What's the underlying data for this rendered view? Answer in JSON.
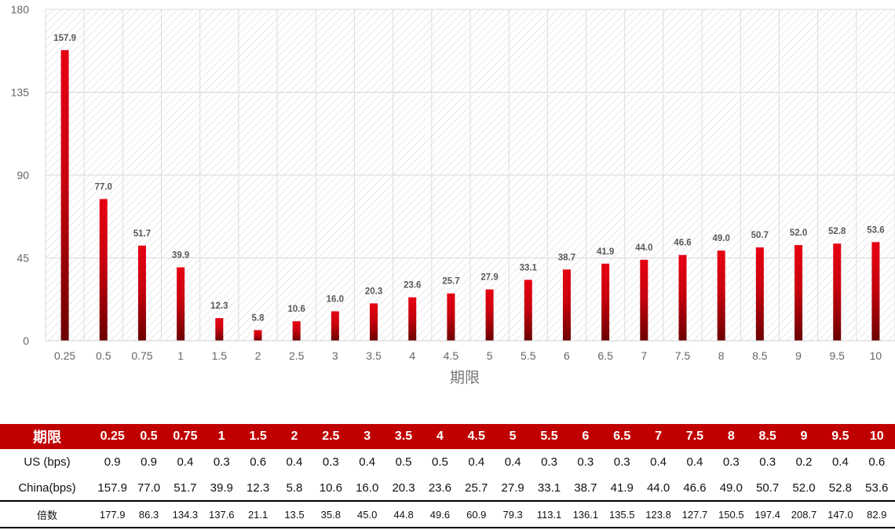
{
  "chart_data": {
    "type": "bar",
    "title": "",
    "xlabel": "期限",
    "ylabel": "",
    "ylim": [
      0,
      180
    ],
    "yticks": [
      0,
      45,
      90,
      135,
      180
    ],
    "categories": [
      "0.25",
      "0.5",
      "0.75",
      "1",
      "1.5",
      "2",
      "2.5",
      "3",
      "3.5",
      "4",
      "4.5",
      "5",
      "5.5",
      "6",
      "6.5",
      "7",
      "7.5",
      "8",
      "8.5",
      "9",
      "9.5",
      "10"
    ],
    "values": [
      157.9,
      77.0,
      51.7,
      39.9,
      12.3,
      5.8,
      10.6,
      16.0,
      20.3,
      23.6,
      25.7,
      27.9,
      33.1,
      38.7,
      41.9,
      44.0,
      46.6,
      49.0,
      50.7,
      52.0,
      52.8,
      53.6
    ],
    "data_labels": [
      "157.9",
      "77.0",
      "51.7",
      "39.9",
      "12.3",
      "5.8",
      "10.6",
      "16.0",
      "20.3",
      "23.6",
      "25.7",
      "27.9",
      "33.1",
      "38.7",
      "41.9",
      "44.0",
      "46.6",
      "49.0",
      "50.7",
      "52.0",
      "52.8",
      "53.6"
    ],
    "grid": true,
    "bar_color_top": "#e60012",
    "bar_color_bottom": "#6b0000",
    "table": {
      "header_label": "期限",
      "header_color": "#c00000",
      "columns": [
        "0.25",
        "0.5",
        "0.75",
        "1",
        "1.5",
        "2",
        "2.5",
        "3",
        "3.5",
        "4",
        "4.5",
        "5",
        "5.5",
        "6",
        "6.5",
        "7",
        "7.5",
        "8",
        "8.5",
        "9",
        "9.5",
        "10"
      ],
      "rows": [
        {
          "label": "US (bps)",
          "values": [
            "0.9",
            "0.9",
            "0.4",
            "0.3",
            "0.6",
            "0.4",
            "0.3",
            "0.4",
            "0.5",
            "0.5",
            "0.4",
            "0.4",
            "0.3",
            "0.3",
            "0.3",
            "0.4",
            "0.4",
            "0.3",
            "0.3",
            "0.2",
            "0.4",
            "0.6"
          ]
        },
        {
          "label": "China(bps)",
          "values": [
            "157.9",
            "77.0",
            "51.7",
            "39.9",
            "12.3",
            "5.8",
            "10.6",
            "16.0",
            "20.3",
            "23.6",
            "25.7",
            "27.9",
            "33.1",
            "38.7",
            "41.9",
            "44.0",
            "46.6",
            "49.0",
            "50.7",
            "52.0",
            "52.8",
            "53.6"
          ]
        },
        {
          "label": "倍数",
          "values": [
            "177.9",
            "86.3",
            "134.3",
            "137.6",
            "21.1",
            "13.5",
            "35.8",
            "45.0",
            "44.8",
            "49.6",
            "60.9",
            "79.3",
            "113.1",
            "136.1",
            "135.5",
            "123.8",
            "127.7",
            "150.5",
            "197.4",
            "208.7",
            "147.0",
            "82.9"
          ]
        }
      ]
    }
  }
}
